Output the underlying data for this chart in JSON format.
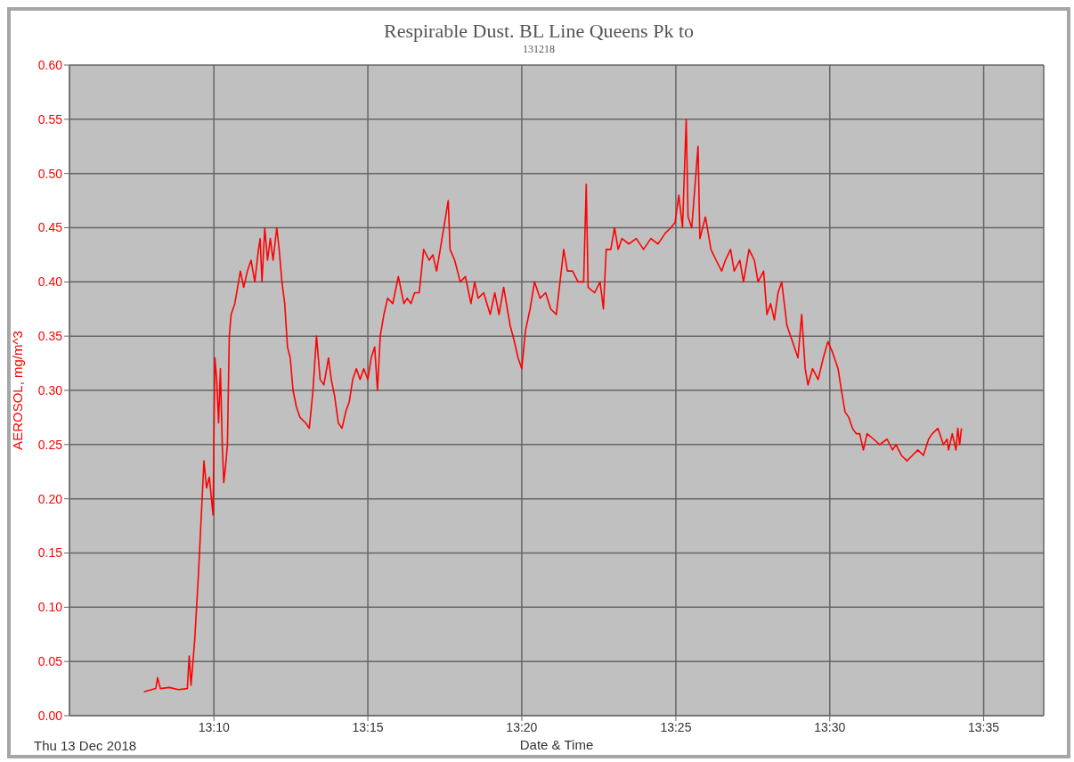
{
  "chart_data": {
    "type": "line",
    "title": "Respirable Dust. BL Line Queens Pk to",
    "subtitle": "131218",
    "xlabel": "Date & Time",
    "ylabel": "AEROSOL, mg/m^3",
    "annotations": [
      "Thu 13 Dec 2018"
    ],
    "x": [
      13.1288,
      13.1352,
      13.1362,
      13.1377,
      13.1425,
      13.1475,
      13.1523,
      13.1533,
      13.1543,
      13.1563,
      13.1583,
      13.1603,
      13.1613,
      13.1627,
      13.1642,
      13.1662,
      13.1672,
      13.1682,
      13.1692,
      13.1702,
      13.1712,
      13.172,
      13.173,
      13.174,
      13.175,
      13.176,
      13.178,
      13.18,
      13.181,
      13.1828,
      13.1848,
      13.1868,
      13.1888,
      13.1908,
      13.1917,
      13.1927,
      13.1942,
      13.1957,
      13.1972,
      13.1987,
      13.2007,
      13.202,
      13.2035,
      13.205,
      13.2065,
      13.208,
      13.2095,
      13.2113,
      13.2133,
      13.2163,
      13.2183,
      13.2203,
      13.2222,
      13.2242,
      13.2262,
      13.2287,
      13.2302,
      13.232,
      13.234,
      13.236,
      13.238,
      13.24,
      13.2418,
      13.2438,
      13.2458,
      13.2478,
      13.25,
      13.2518,
      13.2537,
      13.2552,
      13.2567,
      13.2587,
      13.2607,
      13.2635,
      13.2665,
      13.2695,
      13.2713,
      13.2733,
      13.2753,
      13.2778,
      13.2802,
      13.2832,
      13.2852,
      13.2872,
      13.2887,
      13.2935,
      13.2945,
      13.297,
      13.3,
      13.3028,
      13.3058,
      13.3078,
      13.3097,
      13.3127,
      13.3162,
      13.3187,
      13.321,
      13.3235,
      13.327,
      13.3293,
      13.3313,
      13.3333,
      13.3353,
      13.3378,
      13.3402,
      13.3432,
      13.3462,
      13.349,
      13.352,
      13.354,
      13.356,
      13.358,
      13.3608,
      13.3638,
      13.3668,
      13.3682,
      13.3692,
      13.3727,
      13.3757,
      13.3775,
      13.379,
      13.3815,
      13.3835,
      13.3855,
      13.3875,
      13.3913,
      13.3953,
      13.3992,
      13.4032,
      13.407,
      13.411,
      13.414,
      13.4163,
      13.4183,
      13.4203,
      13.4223,
      13.4233,
      13.4253,
      13.4287,
      13.4297,
      13.4327,
      13.4357,
      13.4385,
      13.4415,
      13.4435,
      13.4463,
      13.4483,
      13.4513,
      13.4533,
      13.4563,
      13.4592,
      13.4612,
      13.4642,
      13.466,
      13.468,
      13.47,
      13.472,
      13.474,
      13.4768,
      13.4798,
      13.4828,
      13.4848,
      13.4867,
      13.4882,
      13.4907,
      13.4937,
      13.4965,
      13.499,
      13.5015,
      13.5045,
      13.5063,
      13.5083,
      13.5103,
      13.5123,
      13.5143,
      13.5162,
      13.5182,
      13.5202,
      13.5237,
      13.527,
      13.531,
      13.534,
      13.5358,
      13.5388,
      13.5418,
      13.5447,
      13.5477,
      13.5507,
      13.5535,
      13.5555,
      13.5585,
      13.5615,
      13.5635,
      13.5643,
      13.5663,
      13.5683,
      13.5693,
      13.5703,
      13.5713
    ],
    "series": [
      {
        "color": "#ff0000",
        "values": [
          0.022,
          0.025,
          0.035,
          0.025,
          0.026,
          0.024,
          0.025,
          0.055,
          0.028,
          0.07,
          0.13,
          0.2,
          0.235,
          0.21,
          0.22,
          0.185,
          0.33,
          0.31,
          0.27,
          0.32,
          0.25,
          0.215,
          0.23,
          0.25,
          0.35,
          0.37,
          0.38,
          0.4,
          0.41,
          0.395,
          0.41,
          0.42,
          0.4,
          0.43,
          0.44,
          0.4,
          0.45,
          0.42,
          0.44,
          0.42,
          0.45,
          0.43,
          0.4,
          0.38,
          0.34,
          0.33,
          0.3,
          0.285,
          0.275,
          0.27,
          0.265,
          0.3,
          0.35,
          0.31,
          0.305,
          0.33,
          0.31,
          0.295,
          0.27,
          0.265,
          0.28,
          0.29,
          0.31,
          0.32,
          0.31,
          0.32,
          0.31,
          0.33,
          0.34,
          0.3,
          0.35,
          0.37,
          0.385,
          0.38,
          0.405,
          0.38,
          0.385,
          0.38,
          0.39,
          0.39,
          0.43,
          0.42,
          0.425,
          0.41,
          0.425,
          0.475,
          0.43,
          0.42,
          0.4,
          0.405,
          0.38,
          0.4,
          0.385,
          0.39,
          0.37,
          0.39,
          0.37,
          0.395,
          0.36,
          0.345,
          0.33,
          0.32,
          0.355,
          0.375,
          0.4,
          0.385,
          0.39,
          0.375,
          0.37,
          0.4,
          0.43,
          0.41,
          0.41,
          0.4,
          0.4,
          0.49,
          0.395,
          0.39,
          0.4,
          0.375,
          0.43,
          0.43,
          0.45,
          0.43,
          0.44,
          0.435,
          0.44,
          0.43,
          0.44,
          0.435,
          0.445,
          0.45,
          0.455,
          0.48,
          0.45,
          0.55,
          0.46,
          0.45,
          0.525,
          0.44,
          0.46,
          0.43,
          0.42,
          0.41,
          0.42,
          0.43,
          0.41,
          0.42,
          0.4,
          0.43,
          0.42,
          0.4,
          0.41,
          0.37,
          0.38,
          0.365,
          0.39,
          0.4,
          0.36,
          0.345,
          0.33,
          0.37,
          0.32,
          0.305,
          0.32,
          0.31,
          0.33,
          0.345,
          0.335,
          0.32,
          0.3,
          0.28,
          0.275,
          0.265,
          0.26,
          0.26,
          0.245,
          0.26,
          0.255,
          0.25,
          0.255,
          0.245,
          0.25,
          0.24,
          0.235,
          0.24,
          0.245,
          0.24,
          0.255,
          0.26,
          0.265,
          0.25,
          0.255,
          0.245,
          0.26,
          0.245,
          0.265,
          0.25,
          0.265
        ]
      }
    ],
    "xlim": [
      13.0885,
      13.6158
    ],
    "xticks": [
      {
        "value": 13.1667,
        "label": "13:10"
      },
      {
        "value": 13.25,
        "label": "13:15"
      },
      {
        "value": 13.3333,
        "label": "13:20"
      },
      {
        "value": 13.4167,
        "label": "13:25"
      },
      {
        "value": 13.5,
        "label": "13:30"
      },
      {
        "value": 13.5833,
        "label": "13:35"
      }
    ],
    "ylim": [
      0,
      0.6
    ],
    "yticks": [
      {
        "value": 0,
        "label": "0.00"
      },
      {
        "value": 0.05,
        "label": "0.05"
      },
      {
        "value": 0.1,
        "label": "0.10"
      },
      {
        "value": 0.15,
        "label": "0.15"
      },
      {
        "value": 0.2,
        "label": "0.20"
      },
      {
        "value": 0.25,
        "label": "0.25"
      },
      {
        "value": 0.3,
        "label": "0.30"
      },
      {
        "value": 0.35,
        "label": "0.35"
      },
      {
        "value": 0.4,
        "label": "0.40"
      },
      {
        "value": 0.45,
        "label": "0.45"
      },
      {
        "value": 0.5,
        "label": "0.50"
      },
      {
        "value": 0.55,
        "label": "0.55"
      },
      {
        "value": 0.6,
        "label": "0.60"
      }
    ],
    "grid": true,
    "legend": false,
    "marker": "none",
    "line_style": "solid"
  }
}
